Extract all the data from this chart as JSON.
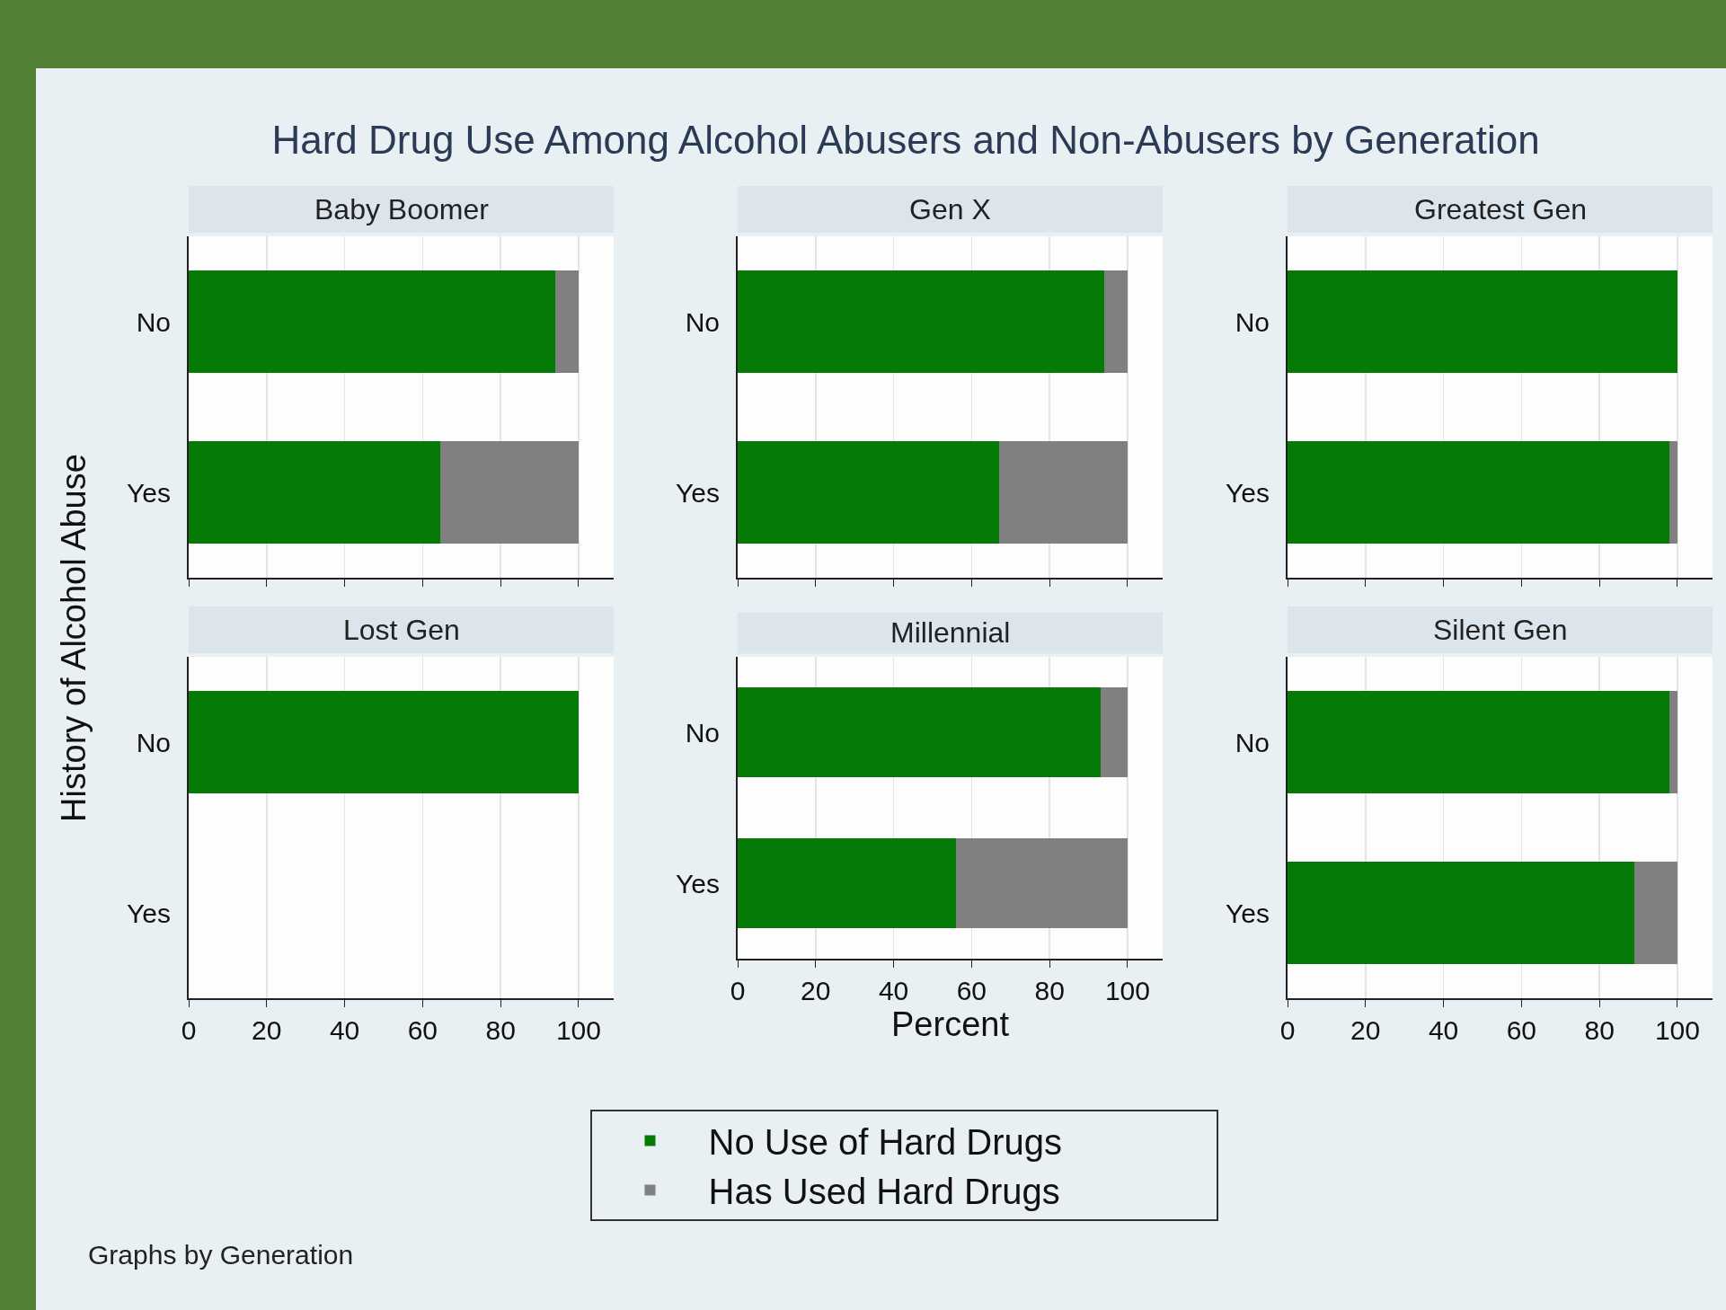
{
  "chart_data": [
    {
      "type": "bar",
      "orientation": "horizontal",
      "stacked": true,
      "title": "Baby Boomer",
      "ylabel": "History of Alcohol Abuse",
      "annotations": [
        "Hard Drug Use Among Alcohol Abusers and Non-Abusers by Generation",
        "Graphs by Generation"
      ],
      "categories": [
        "No",
        "Yes"
      ],
      "xlim": [
        0,
        109
      ],
      "xticks": [
        0,
        20,
        40,
        60,
        80,
        100
      ],
      "grid": "x",
      "tick_labels": "y",
      "legend": false,
      "series": [
        {
          "color": "#067a06",
          "values": [
            94,
            64.5
          ]
        },
        {
          "color": "#808080",
          "values": [
            6,
            35.5
          ]
        }
      ]
    },
    {
      "type": "bar",
      "orientation": "horizontal",
      "stacked": true,
      "title": "Gen X",
      "categories": [
        "No",
        "Yes"
      ],
      "xlim": [
        0,
        109
      ],
      "xticks": [
        0,
        20,
        40,
        60,
        80,
        100
      ],
      "grid": "x",
      "tick_labels": "y",
      "legend": false,
      "series": [
        {
          "color": "#067a06",
          "values": [
            94,
            67
          ]
        },
        {
          "color": "#808080",
          "values": [
            6,
            33
          ]
        }
      ]
    },
    {
      "type": "bar",
      "orientation": "horizontal",
      "stacked": true,
      "title": "Greatest Gen",
      "categories": [
        "No",
        "Yes"
      ],
      "xlim": [
        0,
        109
      ],
      "xticks": [
        0,
        20,
        40,
        60,
        80,
        100
      ],
      "grid": "x",
      "tick_labels": "y",
      "legend": false,
      "series": [
        {
          "color": "#067a06",
          "values": [
            100,
            98
          ]
        },
        {
          "color": "#808080",
          "values": [
            0,
            2
          ]
        }
      ]
    },
    {
      "type": "bar",
      "orientation": "horizontal",
      "stacked": true,
      "title": "Lost Gen",
      "categories": [
        "No",
        "Yes"
      ],
      "xlim": [
        0,
        109
      ],
      "xticks": [
        0,
        20,
        40,
        60,
        80,
        100
      ],
      "grid": "x",
      "legend": false,
      "series": [
        {
          "color": "#067a06",
          "values": [
            100,
            null
          ]
        },
        {
          "color": "#808080",
          "values": [
            0,
            null
          ]
        }
      ]
    },
    {
      "type": "bar",
      "orientation": "horizontal",
      "stacked": true,
      "title": "Millennial",
      "xlabel": "Percent",
      "categories": [
        "No",
        "Yes"
      ],
      "xlim": [
        0,
        109
      ],
      "xticks": [
        0,
        20,
        40,
        60,
        80,
        100
      ],
      "grid": "x",
      "legend": "bottom",
      "series": [
        {
          "name": "No Use of Hard Drugs",
          "color": "#067a06",
          "values": [
            93,
            56
          ]
        },
        {
          "name": "Has Used Hard Drugs",
          "color": "#808080",
          "values": [
            7,
            44
          ]
        }
      ]
    },
    {
      "type": "bar",
      "orientation": "horizontal",
      "stacked": true,
      "title": "Silent Gen",
      "categories": [
        "No",
        "Yes"
      ],
      "xlim": [
        0,
        109
      ],
      "xticks": [
        0,
        20,
        40,
        60,
        80,
        100
      ],
      "grid": "x",
      "legend": false,
      "series": [
        {
          "color": "#067a06",
          "values": [
            98,
            89
          ]
        },
        {
          "color": "#808080",
          "values": [
            2,
            11
          ]
        }
      ]
    }
  ]
}
